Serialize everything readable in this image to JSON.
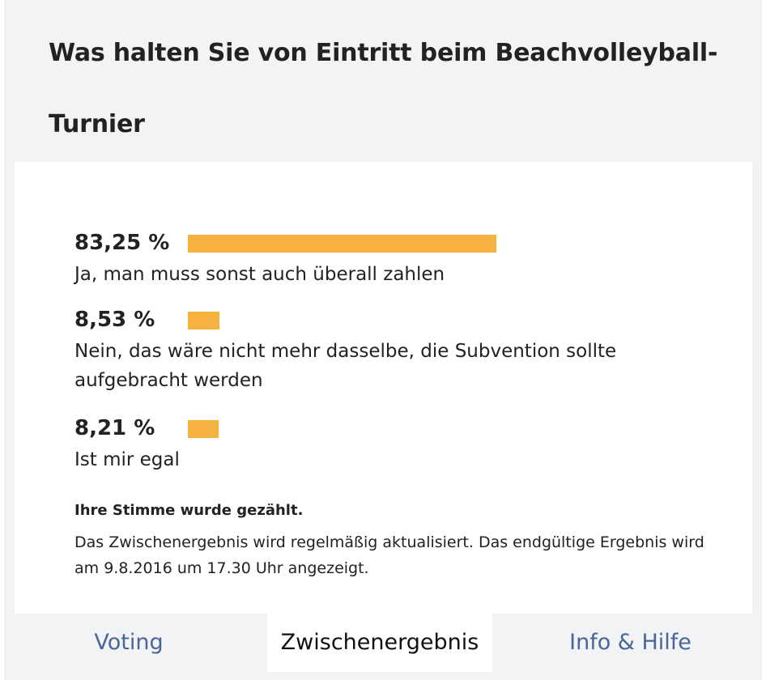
{
  "poll": {
    "title": "Was halten Sie von Eintritt beim Beachvolleyball-Turnier"
  },
  "results": [
    {
      "percent_label": "83,25 %",
      "percent_value": 83.25,
      "answer": "Ja, man muss sonst auch überall zahlen"
    },
    {
      "percent_label": "8,53 %",
      "percent_value": 8.53,
      "answer": "Nein, das wäre nicht mehr dasselbe, die Subvention sollte aufgebracht werden"
    },
    {
      "percent_label": "8,21 %",
      "percent_value": 8.21,
      "answer": "Ist mir egal"
    }
  ],
  "messages": {
    "vote_counted": "Ihre Stimme wurde gezählt.",
    "update_note": "Das Zwischenergebnis wird regelmäßig aktualisiert. Das endgültige Ergebnis wird am 9.8.2016 um 17.30 Uhr angezeigt."
  },
  "tabs": [
    {
      "label": "Voting",
      "active": false
    },
    {
      "label": "Zwischenergebnis",
      "active": true
    },
    {
      "label": "Info & Hilfe",
      "active": false
    }
  ],
  "colors": {
    "bar": "#f7b13e",
    "tab_link": "#4a6598",
    "widget_background": "#f2f3f5",
    "panel_background": "#ffffff"
  }
}
